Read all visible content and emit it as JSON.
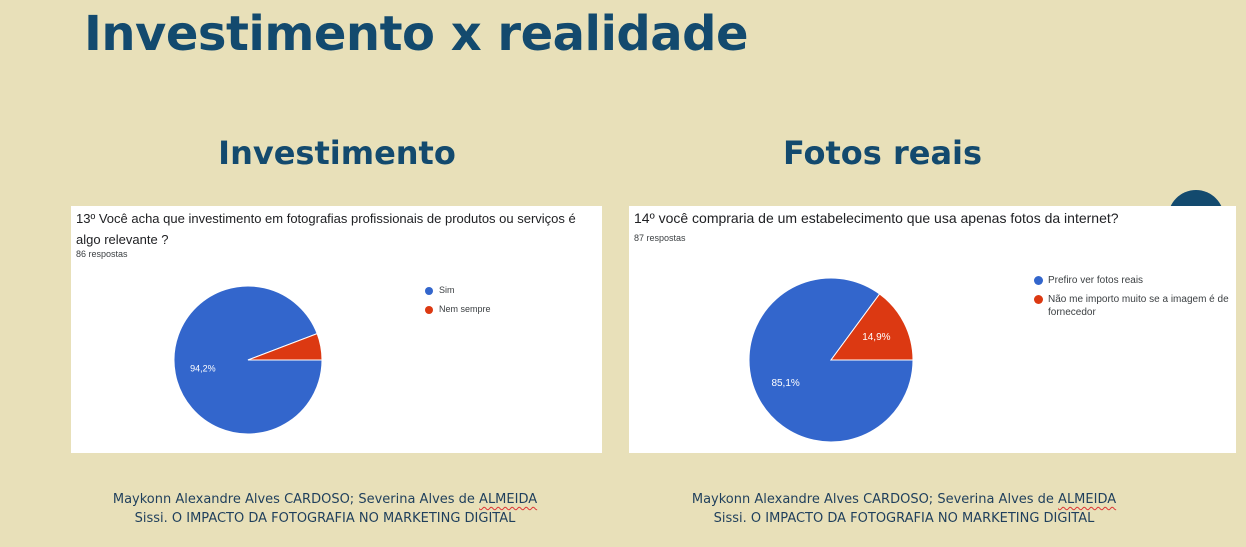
{
  "slide_title": "Investimento x realidade",
  "left": {
    "section_title": "Investimento",
    "citation_line1_pre": "Maykonn Alexandre Alves CARDOSO; Severina Alves de ",
    "citation_line1_wavy": "ALMEIDA",
    "citation_line2": "Sissi. O IMPACTO DA FOTOGRAFIA NO MARKETING DIGITAL"
  },
  "right": {
    "section_title": "Fotos reais",
    "citation_line1_pre": "Maykonn Alexandre Alves CARDOSO; Severina Alves de ",
    "citation_line1_wavy": "ALMEIDA",
    "citation_line2": "Sissi. O IMPACTO DA FOTOGRAFIA NO MARKETING DIGITAL"
  },
  "chart_data": [
    {
      "type": "pie",
      "title": "13º Você acha que investimento em fotografias profissionais de produtos ou serviços é algo relevante ?",
      "subtitle": "86 respostas",
      "categories": [
        "Sim",
        "Nem sempre"
      ],
      "values": [
        94.2,
        5.8
      ],
      "data_labels": [
        "94,2%",
        ""
      ],
      "colors": [
        "#3366cc",
        "#dc3912"
      ],
      "legend_position": "right"
    },
    {
      "type": "pie",
      "title": "14º você compraria de um estabelecimento que usa apenas fotos da internet?",
      "subtitle": "87 respostas",
      "categories": [
        "Prefiro ver fotos reais",
        "Não me importo muito se a imagem é de fornecedor"
      ],
      "values": [
        85.1,
        14.9
      ],
      "data_labels": [
        "85,1%",
        "14,9%"
      ],
      "colors": [
        "#3366cc",
        "#dc3912"
      ],
      "legend_position": "right"
    }
  ]
}
